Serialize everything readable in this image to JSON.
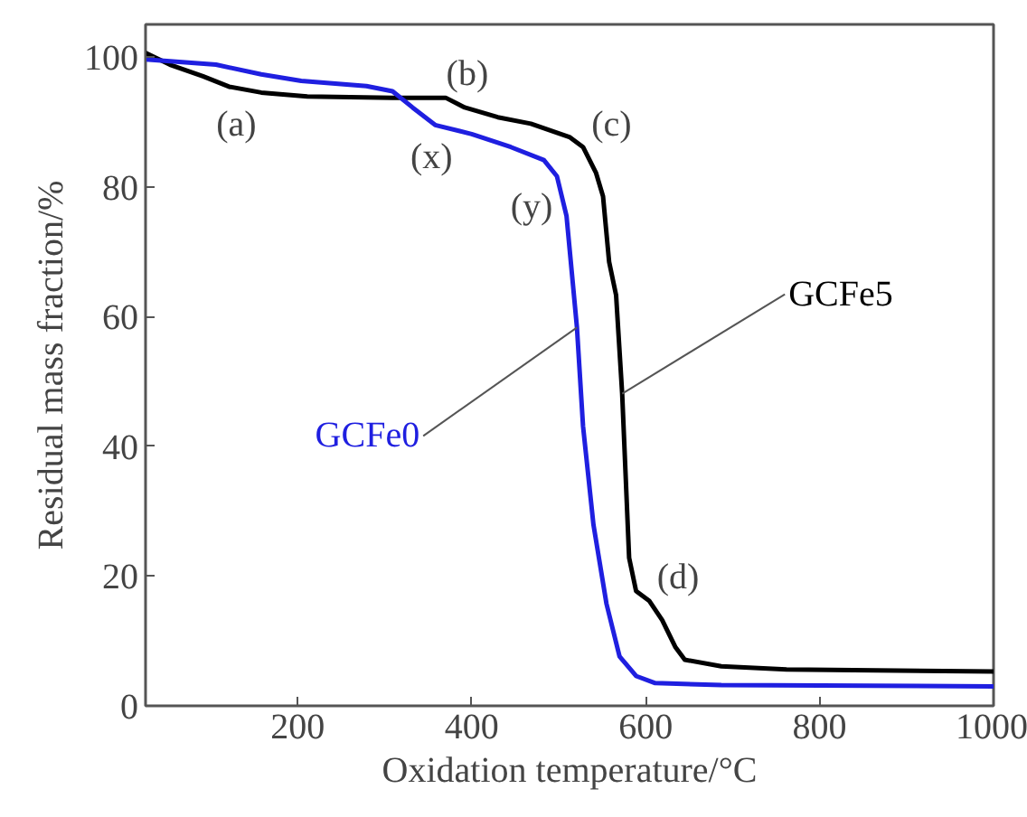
{
  "chart_data": {
    "type": "line",
    "xlabel": "Oxidation temperature/°C",
    "ylabel": "Residual mass fraction/%",
    "xlim": [
      25,
      1000
    ],
    "ylim": [
      0,
      105
    ],
    "xticks": [
      200,
      400,
      600,
      800,
      1000
    ],
    "yticks": [
      0,
      20,
      40,
      60,
      80,
      100
    ],
    "grid": false,
    "line_style": "solid",
    "marker": "none",
    "series": [
      {
        "name": "GCFe5",
        "color": "#000000",
        "x": [
          25,
          53,
          91,
          121,
          158,
          211,
          309,
          370,
          392,
          430,
          468,
          513,
          528,
          543,
          551,
          558,
          566,
          573,
          581,
          589,
          604,
          619,
          634,
          645,
          687,
          762,
          1000
        ],
        "values": [
          100.6,
          98.8,
          97,
          95.4,
          94.5,
          93.9,
          93.7,
          93.7,
          92.2,
          90.7,
          89.7,
          87.6,
          86.1,
          82.1,
          78.5,
          68.4,
          63.3,
          48.1,
          22.8,
          17.7,
          16.2,
          13.2,
          9.1,
          7.1,
          6.1,
          5.6,
          5.3
        ]
      },
      {
        "name": "GCFe0",
        "color": "#1f1fe0",
        "x": [
          25,
          106,
          158,
          204,
          279,
          309,
          332,
          358,
          400,
          445,
          483,
          498,
          509,
          521,
          528,
          540,
          555,
          570,
          589,
          611,
          687,
          1000
        ],
        "values": [
          99.6,
          98.8,
          97.3,
          96.3,
          95.5,
          94.7,
          92.2,
          89.5,
          88.1,
          86.1,
          84.1,
          81.6,
          75.5,
          58.3,
          43.1,
          27.9,
          15.7,
          7.6,
          4.6,
          3.5,
          3.2,
          3.0
        ]
      }
    ],
    "annotations": [
      {
        "text": "(a)",
        "x": 121,
        "y": 95.4
      },
      {
        "text": "(b)",
        "x": 370,
        "y": 93.7
      },
      {
        "text": "(c)",
        "x": 513,
        "y": 87.6
      },
      {
        "text": "(d)",
        "x": 604,
        "y": 16.2
      },
      {
        "text": "(x)",
        "x": 358,
        "y": 89.5
      },
      {
        "text": "(y)",
        "x": 498,
        "y": 81.6
      }
    ]
  }
}
